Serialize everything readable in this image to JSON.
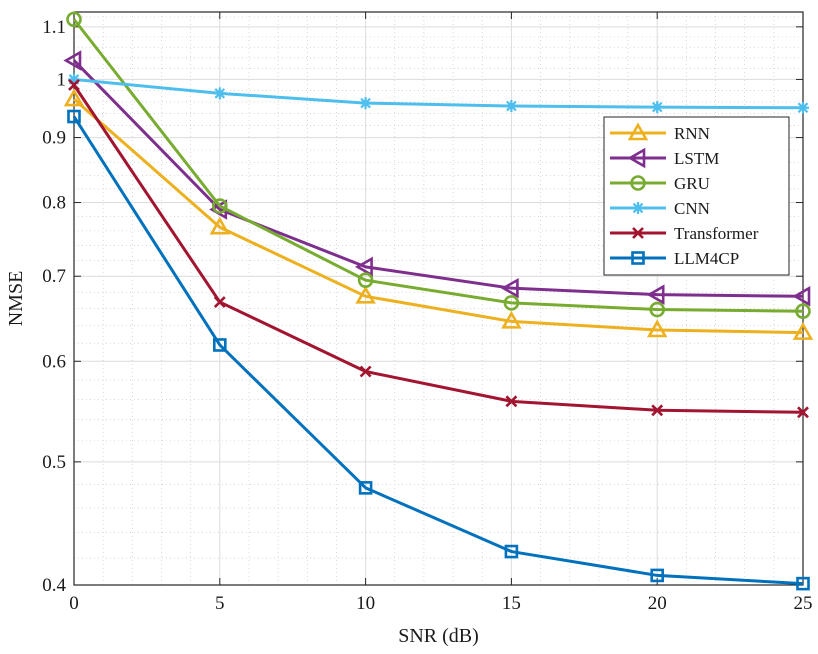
{
  "chart_data": {
    "type": "line",
    "title": "",
    "xlabel": "SNR (dB)",
    "ylabel": "NMSE",
    "xlim": [
      0,
      25
    ],
    "ylim": [
      0.4,
      1.13
    ],
    "yscale": "log",
    "grid": true,
    "minor_grid": true,
    "legend_position": "top-right",
    "x": [
      0,
      5,
      10,
      15,
      20,
      25
    ],
    "xticks": [
      "0",
      "5",
      "10",
      "15",
      "20",
      "25"
    ],
    "yticks": [
      {
        "value": 0.4,
        "label": "0.4"
      },
      {
        "value": 0.5,
        "label": "0.5"
      },
      {
        "value": 0.6,
        "label": "0.6"
      },
      {
        "value": 0.7,
        "label": "0.7"
      },
      {
        "value": 0.8,
        "label": "0.8"
      },
      {
        "value": 0.9,
        "label": "0.9"
      },
      {
        "value": 1.0,
        "label": "1"
      },
      {
        "value": 1.1,
        "label": "1.1"
      }
    ],
    "series": [
      {
        "name": "RNN",
        "color": "#EDB120",
        "marker": "triangle-up",
        "values": [
          0.965,
          0.765,
          0.675,
          0.645,
          0.635,
          0.632
        ]
      },
      {
        "name": "LSTM",
        "color": "#7E2F8E",
        "marker": "triangle-left",
        "values": [
          1.035,
          0.79,
          0.712,
          0.685,
          0.677,
          0.675
        ]
      },
      {
        "name": "GRU",
        "color": "#77AC30",
        "marker": "circle",
        "values": [
          1.115,
          0.795,
          0.695,
          0.667,
          0.659,
          0.657
        ]
      },
      {
        "name": "CNN",
        "color": "#4DBEEE",
        "marker": "asterisk",
        "values": [
          1.0,
          0.975,
          0.958,
          0.953,
          0.951,
          0.95
        ]
      },
      {
        "name": "Transformer",
        "color": "#A2142F",
        "marker": "x",
        "values": [
          0.99,
          0.668,
          0.589,
          0.558,
          0.549,
          0.547
        ]
      },
      {
        "name": "LLM4CP",
        "color": "#0072BD",
        "marker": "square",
        "values": [
          0.935,
          0.618,
          0.477,
          0.425,
          0.407,
          0.401
        ]
      }
    ]
  }
}
